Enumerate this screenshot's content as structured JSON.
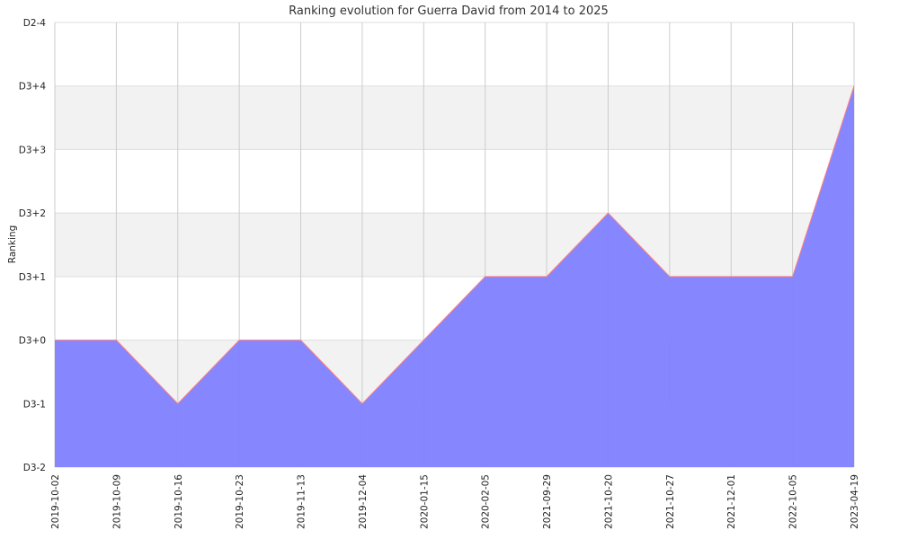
{
  "chart_data": {
    "type": "area",
    "title": "Ranking evolution for Guerra David from 2014 to 2025",
    "xlabel": "",
    "ylabel": "Ranking",
    "categories": [
      "2019-10-02",
      "2019-10-09",
      "2019-10-16",
      "2019-10-23",
      "2019-11-13",
      "2019-12-04",
      "2020-01-15",
      "2020-02-05",
      "2021-09-29",
      "2021-10-20",
      "2021-10-27",
      "2021-12-01",
      "2022-10-05",
      "2023-04-19"
    ],
    "y_ticks": [
      "D3-2",
      "D3-1",
      "D3+0",
      "D3+1",
      "D3+2",
      "D3+3",
      "D3+4",
      "D2-4"
    ],
    "series": [
      {
        "values": [
          "D3+0",
          "D3+0",
          "D3-1",
          "D3+0",
          "D3+0",
          "D3-1",
          "D3+0",
          "D3+1",
          "D3+1",
          "D3+2",
          "D3+1",
          "D3+1",
          "D3+1",
          "D3+4"
        ]
      }
    ],
    "grid": true,
    "colors": {
      "fill": "#8080ff",
      "line": "#ff8080",
      "band": "#f2f2f2",
      "grid": "#cccccc"
    }
  }
}
